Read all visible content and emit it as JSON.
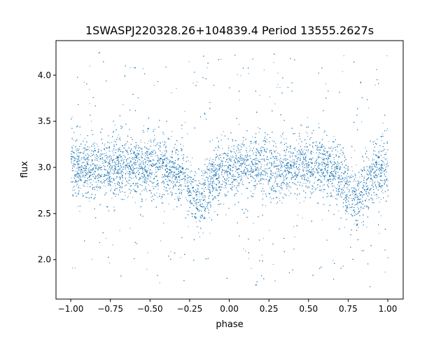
{
  "chart_data": {
    "type": "scatter",
    "title": "1SWASPJ220328.26+104839.4 Period 13555.2627s",
    "xlabel": "phase",
    "ylabel": "flux",
    "xlim": [
      -1.093,
      1.097
    ],
    "ylim": [
      1.573,
      4.374
    ],
    "xticks": [
      "-1.00",
      "-0.75",
      "-0.50",
      "-0.25",
      "0.00",
      "0.25",
      "0.50",
      "0.75",
      "1.00"
    ],
    "yticks": [
      "2.0",
      "2.5",
      "3.0",
      "3.5",
      "4.0"
    ],
    "grid": false,
    "legend": "none",
    "color": "#1f77b4",
    "point_x_range": [
      -1.0,
      1.0
    ],
    "point_y_range": [
      1.7,
      4.25
    ],
    "binned_mean": {
      "x": [
        -1.0,
        -0.9,
        -0.8,
        -0.7,
        -0.6,
        -0.5,
        -0.4,
        -0.3,
        -0.25,
        -0.2,
        -0.15,
        -0.1,
        0.0,
        0.1,
        0.2,
        0.3,
        0.4,
        0.5,
        0.6,
        0.7,
        0.75,
        0.8,
        0.85,
        0.9,
        1.0
      ],
      "y": [
        2.98,
        3.0,
        3.0,
        3.0,
        3.01,
        3.01,
        3.0,
        2.93,
        2.78,
        2.62,
        2.75,
        2.92,
        3.0,
        3.01,
        3.01,
        3.0,
        3.01,
        3.01,
        3.0,
        2.93,
        2.78,
        2.62,
        2.75,
        2.92,
        2.98
      ]
    }
  }
}
